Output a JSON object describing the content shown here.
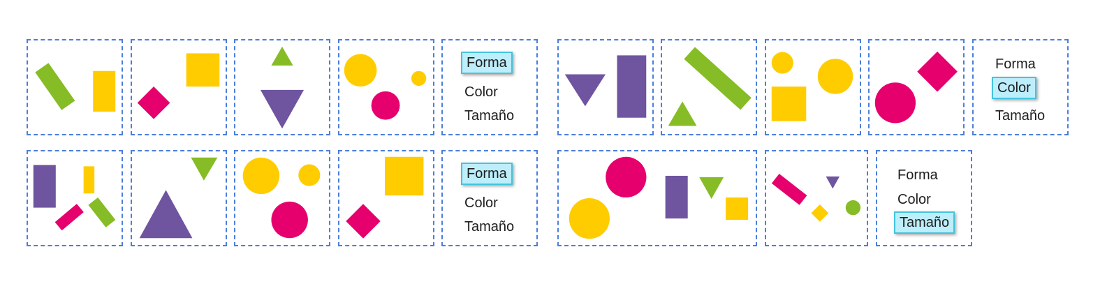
{
  "colors": {
    "green": "#86bc25",
    "yellow": "#ffcc00",
    "magenta": "#e6006e",
    "purple": "#6f54a0",
    "border": "#4a7fdd",
    "highlight": "#bdeefb",
    "highlight_border": "#45c3dd"
  },
  "groups": [
    {
      "name": "group-1",
      "options": [
        {
          "label": "Forma",
          "selected": true
        },
        {
          "label": "Color",
          "selected": false
        },
        {
          "label": "Tamaño",
          "selected": false
        }
      ]
    },
    {
      "name": "group-2",
      "options": [
        {
          "label": "Forma",
          "selected": false
        },
        {
          "label": "Color",
          "selected": true
        },
        {
          "label": "Tamaño",
          "selected": false
        }
      ]
    },
    {
      "name": "group-3",
      "options": [
        {
          "label": "Forma",
          "selected": true
        },
        {
          "label": "Color",
          "selected": false
        },
        {
          "label": "Tamaño",
          "selected": false
        }
      ]
    },
    {
      "name": "group-4",
      "options": [
        {
          "label": "Forma",
          "selected": false
        },
        {
          "label": "Color",
          "selected": false
        },
        {
          "label": "Tamaño",
          "selected": true
        }
      ]
    }
  ]
}
